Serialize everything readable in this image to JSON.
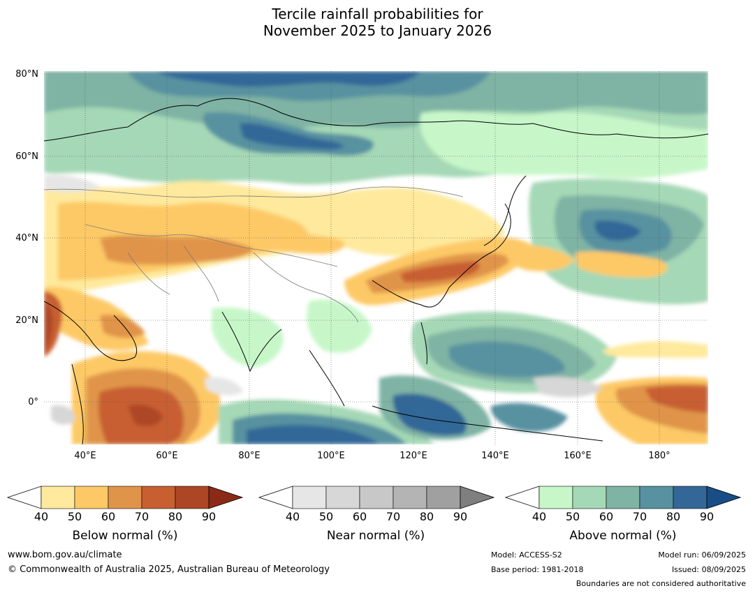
{
  "title": {
    "line1": "Tercile rainfall probabilities for",
    "line2": "November 2025 to January 2026"
  },
  "map": {
    "lat_labels": [
      "80°N",
      "60°N",
      "40°N",
      "20°N",
      "0°"
    ],
    "lon_labels": [
      "40°E",
      "60°E",
      "80°E",
      "100°E",
      "120°E",
      "140°E",
      "160°E",
      "180°"
    ]
  },
  "colorbars": [
    {
      "label": "Below normal (%)",
      "ticks": [
        "40",
        "50",
        "60",
        "70",
        "80",
        "90"
      ],
      "colors": [
        "#ffffff",
        "#fee99c",
        "#fdc966",
        "#e0944a",
        "#c85f30",
        "#ad4625",
        "#8b2a16"
      ]
    },
    {
      "label": "Near normal (%)",
      "ticks": [
        "40",
        "50",
        "60",
        "70",
        "80",
        "90"
      ],
      "colors": [
        "#ffffff",
        "#e6e6e6",
        "#d7d7d7",
        "#c8c8c8",
        "#b4b4b4",
        "#a0a0a0",
        "#7f7f7f"
      ]
    },
    {
      "label": "Above normal (%)",
      "ticks": [
        "40",
        "50",
        "60",
        "70",
        "80",
        "90"
      ],
      "colors": [
        "#ffffff",
        "#c7f7c9",
        "#a5d8b6",
        "#7fb3a4",
        "#5892a0",
        "#336797",
        "#194d86"
      ]
    }
  ],
  "footer": {
    "website": "www.bom.gov.au/climate",
    "copyright": "© Commonwealth of Australia 2025, Australian Bureau of Meteorology",
    "model": "Model: ACCESS-S2",
    "base_period": "Base period: 1981-2018",
    "model_run": "Model run: 06/09/2025",
    "issued": "Issued: 08/09/2025",
    "disclaimer": "Boundaries are not considered authoritative"
  }
}
